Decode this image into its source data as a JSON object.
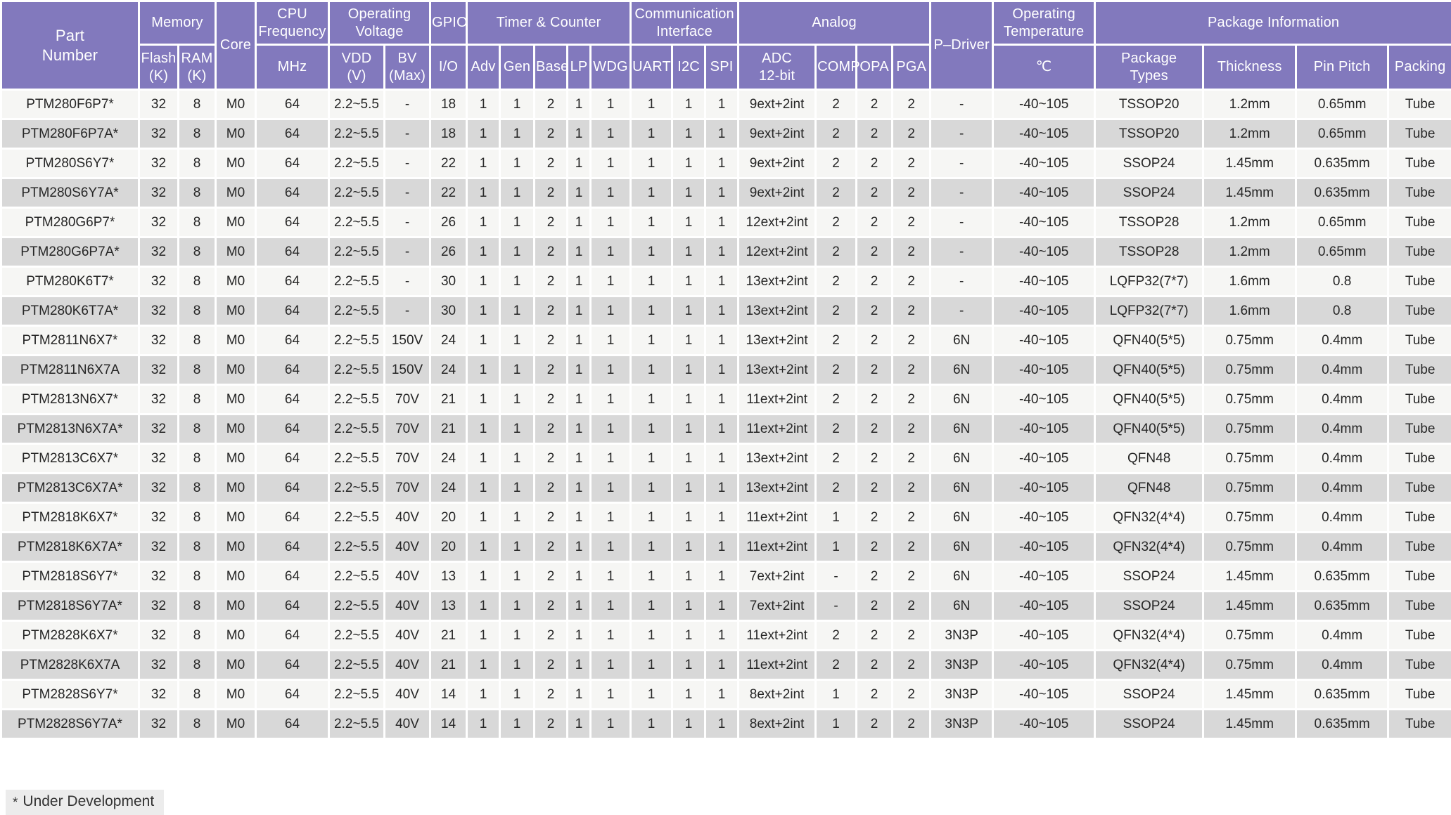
{
  "meta": {
    "description": "Microcontroller product selection table, PTM28x series",
    "colors": {
      "header_bg": "#8279BD",
      "row_light": "#F6F6F4",
      "row_dark": "#D8D8D8",
      "grid": "#FFFFFF",
      "text": "#262626",
      "footnote_bg": "#ECECEC"
    }
  },
  "header": {
    "row1": {
      "part_number": "Part\nNumber",
      "memory": "Memory",
      "core": "Core",
      "cpu_frequency": "CPU\nFrequency",
      "operating_voltage": "Operating\nVoltage",
      "gpio": "GPIO",
      "timer_counter": "Timer & Counter",
      "comm_interface": "Communication\nInterface",
      "analog": "Analog",
      "p_driver": "P–Driver",
      "operating_temperature": "Operating\nTemperature",
      "package_information": "Package Information"
    },
    "row2": {
      "flash": "Flash\n(K)",
      "ram": "RAM\n(K)",
      "mhz": "MHz",
      "vdd": "VDD\n(V)",
      "bv": "BV\n(Max)",
      "io": "I/O",
      "adv": "Adv",
      "gen": "Gen",
      "base": "Base",
      "lp": "LP",
      "wdg": "WDG",
      "uart": "UART",
      "i2c": "I2C",
      "spi": "SPI",
      "adc": "ADC\n12-bit",
      "comp": "COMP",
      "opa": "OPA",
      "pga": "PGA",
      "celsius": "℃",
      "package_types": "Package\nTypes",
      "thickness": "Thickness",
      "pin_pitch": "Pin Pitch",
      "packing": "Packing"
    }
  },
  "rows": [
    [
      "PTM280F6P7*",
      "32",
      "8",
      "M0",
      "64",
      "2.2~5.5",
      "-",
      "18",
      "1",
      "1",
      "2",
      "1",
      "1",
      "1",
      "1",
      "1",
      "9ext+2int",
      "2",
      "2",
      "2",
      "-",
      "-40~105",
      "TSSOP20",
      "1.2mm",
      "0.65mm",
      "Tube"
    ],
    [
      "PTM280F6P7A*",
      "32",
      "8",
      "M0",
      "64",
      "2.2~5.5",
      "-",
      "18",
      "1",
      "1",
      "2",
      "1",
      "1",
      "1",
      "1",
      "1",
      "9ext+2int",
      "2",
      "2",
      "2",
      "-",
      "-40~105",
      "TSSOP20",
      "1.2mm",
      "0.65mm",
      "Tube"
    ],
    [
      "PTM280S6Y7*",
      "32",
      "8",
      "M0",
      "64",
      "2.2~5.5",
      "-",
      "22",
      "1",
      "1",
      "2",
      "1",
      "1",
      "1",
      "1",
      "1",
      "9ext+2int",
      "2",
      "2",
      "2",
      "-",
      "-40~105",
      "SSOP24",
      "1.45mm",
      "0.635mm",
      "Tube"
    ],
    [
      "PTM280S6Y7A*",
      "32",
      "8",
      "M0",
      "64",
      "2.2~5.5",
      "-",
      "22",
      "1",
      "1",
      "2",
      "1",
      "1",
      "1",
      "1",
      "1",
      "9ext+2int",
      "2",
      "2",
      "2",
      "-",
      "-40~105",
      "SSOP24",
      "1.45mm",
      "0.635mm",
      "Tube"
    ],
    [
      "PTM280G6P7*",
      "32",
      "8",
      "M0",
      "64",
      "2.2~5.5",
      "-",
      "26",
      "1",
      "1",
      "2",
      "1",
      "1",
      "1",
      "1",
      "1",
      "12ext+2int",
      "2",
      "2",
      "2",
      "-",
      "-40~105",
      "TSSOP28",
      "1.2mm",
      "0.65mm",
      "Tube"
    ],
    [
      "PTM280G6P7A*",
      "32",
      "8",
      "M0",
      "64",
      "2.2~5.5",
      "-",
      "26",
      "1",
      "1",
      "2",
      "1",
      "1",
      "1",
      "1",
      "1",
      "12ext+2int",
      "2",
      "2",
      "2",
      "-",
      "-40~105",
      "TSSOP28",
      "1.2mm",
      "0.65mm",
      "Tube"
    ],
    [
      "PTM280K6T7*",
      "32",
      "8",
      "M0",
      "64",
      "2.2~5.5",
      "-",
      "30",
      "1",
      "1",
      "2",
      "1",
      "1",
      "1",
      "1",
      "1",
      "13ext+2int",
      "2",
      "2",
      "2",
      "-",
      "-40~105",
      "LQFP32(7*7)",
      "1.6mm",
      "0.8",
      "Tube"
    ],
    [
      "PTM280K6T7A*",
      "32",
      "8",
      "M0",
      "64",
      "2.2~5.5",
      "-",
      "30",
      "1",
      "1",
      "2",
      "1",
      "1",
      "1",
      "1",
      "1",
      "13ext+2int",
      "2",
      "2",
      "2",
      "-",
      "-40~105",
      "LQFP32(7*7)",
      "1.6mm",
      "0.8",
      "Tube"
    ],
    [
      "PTM2811N6X7*",
      "32",
      "8",
      "M0",
      "64",
      "2.2~5.5",
      "150V",
      "24",
      "1",
      "1",
      "2",
      "1",
      "1",
      "1",
      "1",
      "1",
      "13ext+2int",
      "2",
      "2",
      "2",
      "6N",
      "-40~105",
      "QFN40(5*5)",
      "0.75mm",
      "0.4mm",
      "Tube"
    ],
    [
      "PTM2811N6X7A",
      "32",
      "8",
      "M0",
      "64",
      "2.2~5.5",
      "150V",
      "24",
      "1",
      "1",
      "2",
      "1",
      "1",
      "1",
      "1",
      "1",
      "13ext+2int",
      "2",
      "2",
      "2",
      "6N",
      "-40~105",
      "QFN40(5*5)",
      "0.75mm",
      "0.4mm",
      "Tube"
    ],
    [
      "PTM2813N6X7*",
      "32",
      "8",
      "M0",
      "64",
      "2.2~5.5",
      "70V",
      "21",
      "1",
      "1",
      "2",
      "1",
      "1",
      "1",
      "1",
      "1",
      "11ext+2int",
      "2",
      "2",
      "2",
      "6N",
      "-40~105",
      "QFN40(5*5)",
      "0.75mm",
      "0.4mm",
      "Tube"
    ],
    [
      "PTM2813N6X7A*",
      "32",
      "8",
      "M0",
      "64",
      "2.2~5.5",
      "70V",
      "21",
      "1",
      "1",
      "2",
      "1",
      "1",
      "1",
      "1",
      "1",
      "11ext+2int",
      "2",
      "2",
      "2",
      "6N",
      "-40~105",
      "QFN40(5*5)",
      "0.75mm",
      "0.4mm",
      "Tube"
    ],
    [
      "PTM2813C6X7*",
      "32",
      "8",
      "M0",
      "64",
      "2.2~5.5",
      "70V",
      "24",
      "1",
      "1",
      "2",
      "1",
      "1",
      "1",
      "1",
      "1",
      "13ext+2int",
      "2",
      "2",
      "2",
      "6N",
      "-40~105",
      "QFN48",
      "0.75mm",
      "0.4mm",
      "Tube"
    ],
    [
      "PTM2813C6X7A*",
      "32",
      "8",
      "M0",
      "64",
      "2.2~5.5",
      "70V",
      "24",
      "1",
      "1",
      "2",
      "1",
      "1",
      "1",
      "1",
      "1",
      "13ext+2int",
      "2",
      "2",
      "2",
      "6N",
      "-40~105",
      "QFN48",
      "0.75mm",
      "0.4mm",
      "Tube"
    ],
    [
      "PTM2818K6X7*",
      "32",
      "8",
      "M0",
      "64",
      "2.2~5.5",
      "40V",
      "20",
      "1",
      "1",
      "2",
      "1",
      "1",
      "1",
      "1",
      "1",
      "11ext+2int",
      "1",
      "2",
      "2",
      "6N",
      "-40~105",
      "QFN32(4*4)",
      "0.75mm",
      "0.4mm",
      "Tube"
    ],
    [
      "PTM2818K6X7A*",
      "32",
      "8",
      "M0",
      "64",
      "2.2~5.5",
      "40V",
      "20",
      "1",
      "1",
      "2",
      "1",
      "1",
      "1",
      "1",
      "1",
      "11ext+2int",
      "1",
      "2",
      "2",
      "6N",
      "-40~105",
      "QFN32(4*4)",
      "0.75mm",
      "0.4mm",
      "Tube"
    ],
    [
      "PTM2818S6Y7*",
      "32",
      "8",
      "M0",
      "64",
      "2.2~5.5",
      "40V",
      "13",
      "1",
      "1",
      "2",
      "1",
      "1",
      "1",
      "1",
      "1",
      "7ext+2int",
      "-",
      "2",
      "2",
      "6N",
      "-40~105",
      "SSOP24",
      "1.45mm",
      "0.635mm",
      "Tube"
    ],
    [
      "PTM2818S6Y7A*",
      "32",
      "8",
      "M0",
      "64",
      "2.2~5.5",
      "40V",
      "13",
      "1",
      "1",
      "2",
      "1",
      "1",
      "1",
      "1",
      "1",
      "7ext+2int",
      "-",
      "2",
      "2",
      "6N",
      "-40~105",
      "SSOP24",
      "1.45mm",
      "0.635mm",
      "Tube"
    ],
    [
      "PTM2828K6X7*",
      "32",
      "8",
      "M0",
      "64",
      "2.2~5.5",
      "40V",
      "21",
      "1",
      "1",
      "2",
      "1",
      "1",
      "1",
      "1",
      "1",
      "11ext+2int",
      "2",
      "2",
      "2",
      "3N3P",
      "-40~105",
      "QFN32(4*4)",
      "0.75mm",
      "0.4mm",
      "Tube"
    ],
    [
      "PTM2828K6X7A",
      "32",
      "8",
      "M0",
      "64",
      "2.2~5.5",
      "40V",
      "21",
      "1",
      "1",
      "2",
      "1",
      "1",
      "1",
      "1",
      "1",
      "11ext+2int",
      "2",
      "2",
      "2",
      "3N3P",
      "-40~105",
      "QFN32(4*4)",
      "0.75mm",
      "0.4mm",
      "Tube"
    ],
    [
      "PTM2828S6Y7*",
      "32",
      "8",
      "M0",
      "64",
      "2.2~5.5",
      "40V",
      "14",
      "1",
      "1",
      "2",
      "1",
      "1",
      "1",
      "1",
      "1",
      "8ext+2int",
      "1",
      "2",
      "2",
      "3N3P",
      "-40~105",
      "SSOP24",
      "1.45mm",
      "0.635mm",
      "Tube"
    ],
    [
      "PTM2828S6Y7A*",
      "32",
      "8",
      "M0",
      "64",
      "2.2~5.5",
      "40V",
      "14",
      "1",
      "1",
      "2",
      "1",
      "1",
      "1",
      "1",
      "1",
      "8ext+2int",
      "1",
      "2",
      "2",
      "3N3P",
      "-40~105",
      "SSOP24",
      "1.45mm",
      "0.635mm",
      "Tube"
    ]
  ],
  "footnote": {
    "marker": "*",
    "label": "Under Development"
  }
}
